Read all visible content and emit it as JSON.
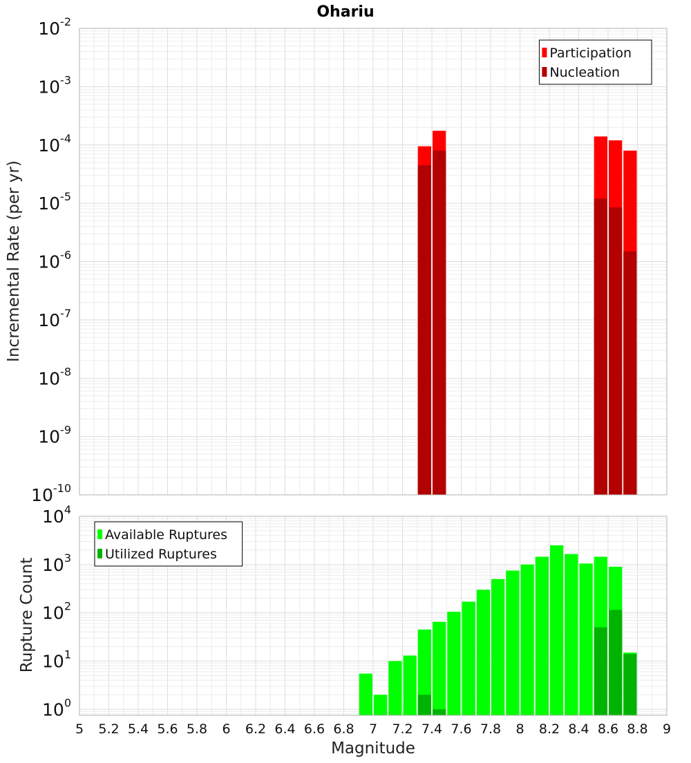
{
  "chart_data": [
    {
      "type": "bar",
      "title": "Ohariu",
      "ylabel": "Incremental Rate (per yr)",
      "xlabel": "",
      "xlim": [
        5,
        9
      ],
      "ylim": [
        1e-10,
        0.01
      ],
      "yscale": "log",
      "bar_width": 0.1,
      "yticks": [
        {
          "base": "10",
          "exp": "-2",
          "value": 0.01
        },
        {
          "base": "10",
          "exp": "-3",
          "value": 0.001
        },
        {
          "base": "10",
          "exp": "-4",
          "value": 0.0001
        },
        {
          "base": "10",
          "exp": "-5",
          "value": 1e-05
        },
        {
          "base": "10",
          "exp": "-6",
          "value": 1e-06
        },
        {
          "base": "10",
          "exp": "-7",
          "value": 1e-07
        },
        {
          "base": "10",
          "exp": "-8",
          "value": 1e-08
        },
        {
          "base": "10",
          "exp": "-9",
          "value": 1e-09
        },
        {
          "base": "10",
          "exp": "-10",
          "value": 1e-10
        }
      ],
      "legend_position": "top-right",
      "series": [
        {
          "name": "Participation",
          "color": "#ff0000",
          "points": [
            {
              "x": 7.35,
              "y": 9.5e-05
            },
            {
              "x": 7.45,
              "y": 0.000175
            },
            {
              "x": 8.55,
              "y": 0.00014
            },
            {
              "x": 8.65,
              "y": 0.00012
            },
            {
              "x": 8.75,
              "y": 8e-05
            }
          ]
        },
        {
          "name": "Nucleation",
          "color": "#b30000",
          "points": [
            {
              "x": 7.35,
              "y": 4.5e-05
            },
            {
              "x": 7.45,
              "y": 8e-05
            },
            {
              "x": 8.55,
              "y": 1.2e-05
            },
            {
              "x": 8.65,
              "y": 8.5e-06
            },
            {
              "x": 8.75,
              "y": 1.5e-06
            }
          ]
        }
      ]
    },
    {
      "type": "bar",
      "title": "",
      "ylabel": "Rupture Count",
      "xlabel": "Magnitude",
      "xlim": [
        5,
        9
      ],
      "ylim": [
        0.75,
        10000
      ],
      "yscale": "log",
      "bar_width": 0.1,
      "xticks": [
        "5",
        "5.2",
        "5.4",
        "5.6",
        "5.8",
        "6",
        "6.2",
        "6.4",
        "6.6",
        "6.8",
        "7",
        "7.2",
        "7.4",
        "7.6",
        "7.8",
        "8",
        "8.2",
        "8.4",
        "8.6",
        "8.8",
        "9"
      ],
      "yticks": [
        {
          "base": "10",
          "exp": "4",
          "value": 10000
        },
        {
          "base": "10",
          "exp": "3",
          "value": 1000
        },
        {
          "base": "10",
          "exp": "2",
          "value": 100
        },
        {
          "base": "10",
          "exp": "1",
          "value": 10
        },
        {
          "base": "10",
          "exp": "0",
          "value": 1
        }
      ],
      "legend_position": "top-left",
      "series": [
        {
          "name": "Available Ruptures",
          "color": "#00ff00",
          "points": [
            {
              "x": 6.95,
              "y": 5.5
            },
            {
              "x": 7.05,
              "y": 2
            },
            {
              "x": 7.15,
              "y": 10
            },
            {
              "x": 7.25,
              "y": 13
            },
            {
              "x": 7.35,
              "y": 45
            },
            {
              "x": 7.45,
              "y": 65
            },
            {
              "x": 7.55,
              "y": 105
            },
            {
              "x": 7.65,
              "y": 170
            },
            {
              "x": 7.75,
              "y": 300
            },
            {
              "x": 7.85,
              "y": 500
            },
            {
              "x": 7.95,
              "y": 750
            },
            {
              "x": 8.05,
              "y": 1000
            },
            {
              "x": 8.15,
              "y": 1450
            },
            {
              "x": 8.25,
              "y": 2500
            },
            {
              "x": 8.35,
              "y": 1650
            },
            {
              "x": 8.45,
              "y": 1050
            },
            {
              "x": 8.55,
              "y": 1450
            },
            {
              "x": 8.65,
              "y": 900
            },
            {
              "x": 8.75,
              "y": 15
            }
          ]
        },
        {
          "name": "Utilized Ruptures",
          "color": "#00b300",
          "points": [
            {
              "x": 7.35,
              "y": 2
            },
            {
              "x": 7.45,
              "y": 1
            },
            {
              "x": 8.55,
              "y": 50
            },
            {
              "x": 8.65,
              "y": 115
            },
            {
              "x": 8.75,
              "y": 14
            }
          ]
        }
      ]
    }
  ]
}
